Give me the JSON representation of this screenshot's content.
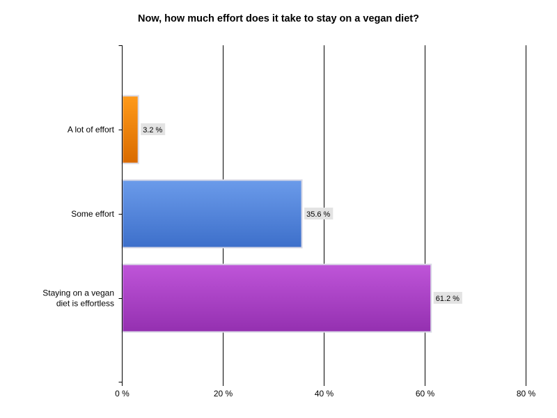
{
  "chart_data": {
    "type": "bar",
    "orientation": "horizontal",
    "title": "Now, how much effort does it take to stay on a vegan diet?",
    "categories": [
      [
        "A lot of effort"
      ],
      [
        "Some effort"
      ],
      [
        "Staying on a vegan",
        "diet is effortless"
      ]
    ],
    "values": [
      3.2,
      35.6,
      61.2
    ],
    "value_labels": [
      "3.2 %",
      "35.6 %",
      "61.2 %"
    ],
    "xlim": [
      0,
      80
    ],
    "xticks": [
      0,
      20,
      40,
      60,
      80
    ],
    "xtick_labels": [
      "0 %",
      "20 %",
      "40 %",
      "60 %",
      "80 %"
    ],
    "grid": "vertical",
    "legend": "none",
    "colors": [
      {
        "top": "#ff9a1a",
        "bottom": "#d96a00"
      },
      {
        "top": "#6b9bea",
        "bottom": "#3d6fca"
      },
      {
        "top": "#bf55d9",
        "bottom": "#9430b0"
      }
    ]
  }
}
